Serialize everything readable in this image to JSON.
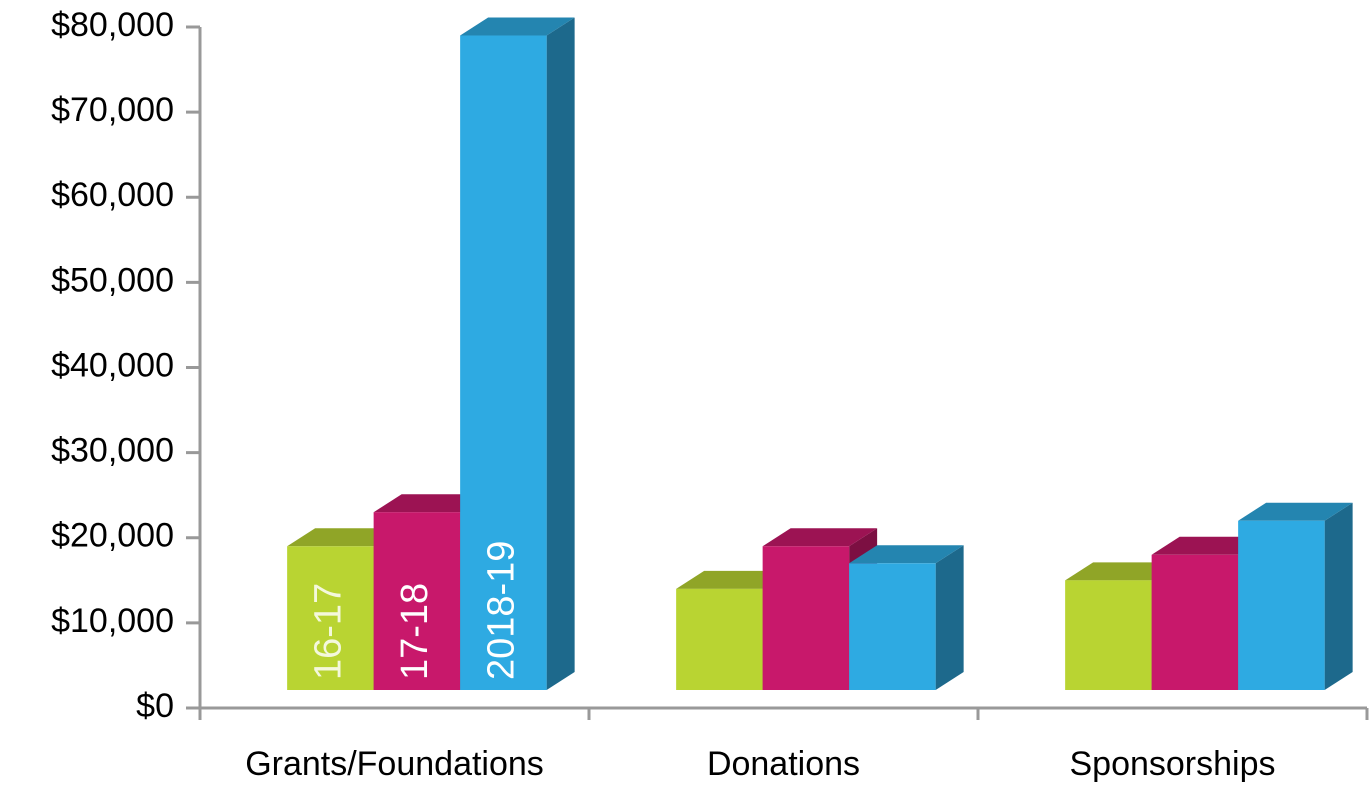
{
  "chart_data": {
    "type": "bar3d",
    "categories": [
      "Grants/Foundations",
      "Donations",
      "Sponsorships"
    ],
    "series": [
      {
        "name": "16-17",
        "color": "#b9d432",
        "values": [
          19000,
          14000,
          15000
        ]
      },
      {
        "name": "17-18",
        "color": "#c8186b",
        "values": [
          23000,
          19000,
          18000
        ]
      },
      {
        "name": "2018-19",
        "color": "#2eaae2",
        "values": [
          79000,
          17000,
          22000
        ]
      }
    ],
    "ylim": [
      0,
      80000
    ],
    "yticks": [
      {
        "value": 0,
        "label": "$0"
      },
      {
        "value": 10000,
        "label": "$10,000"
      },
      {
        "value": 20000,
        "label": "$20,000"
      },
      {
        "value": 30000,
        "label": "$30,000"
      },
      {
        "value": 40000,
        "label": "$40,000"
      },
      {
        "value": 50000,
        "label": "$50,000"
      },
      {
        "value": 60000,
        "label": "$60,000"
      },
      {
        "value": 70000,
        "label": "$70,000"
      },
      {
        "value": 80000,
        "label": "$80,000"
      }
    ]
  }
}
